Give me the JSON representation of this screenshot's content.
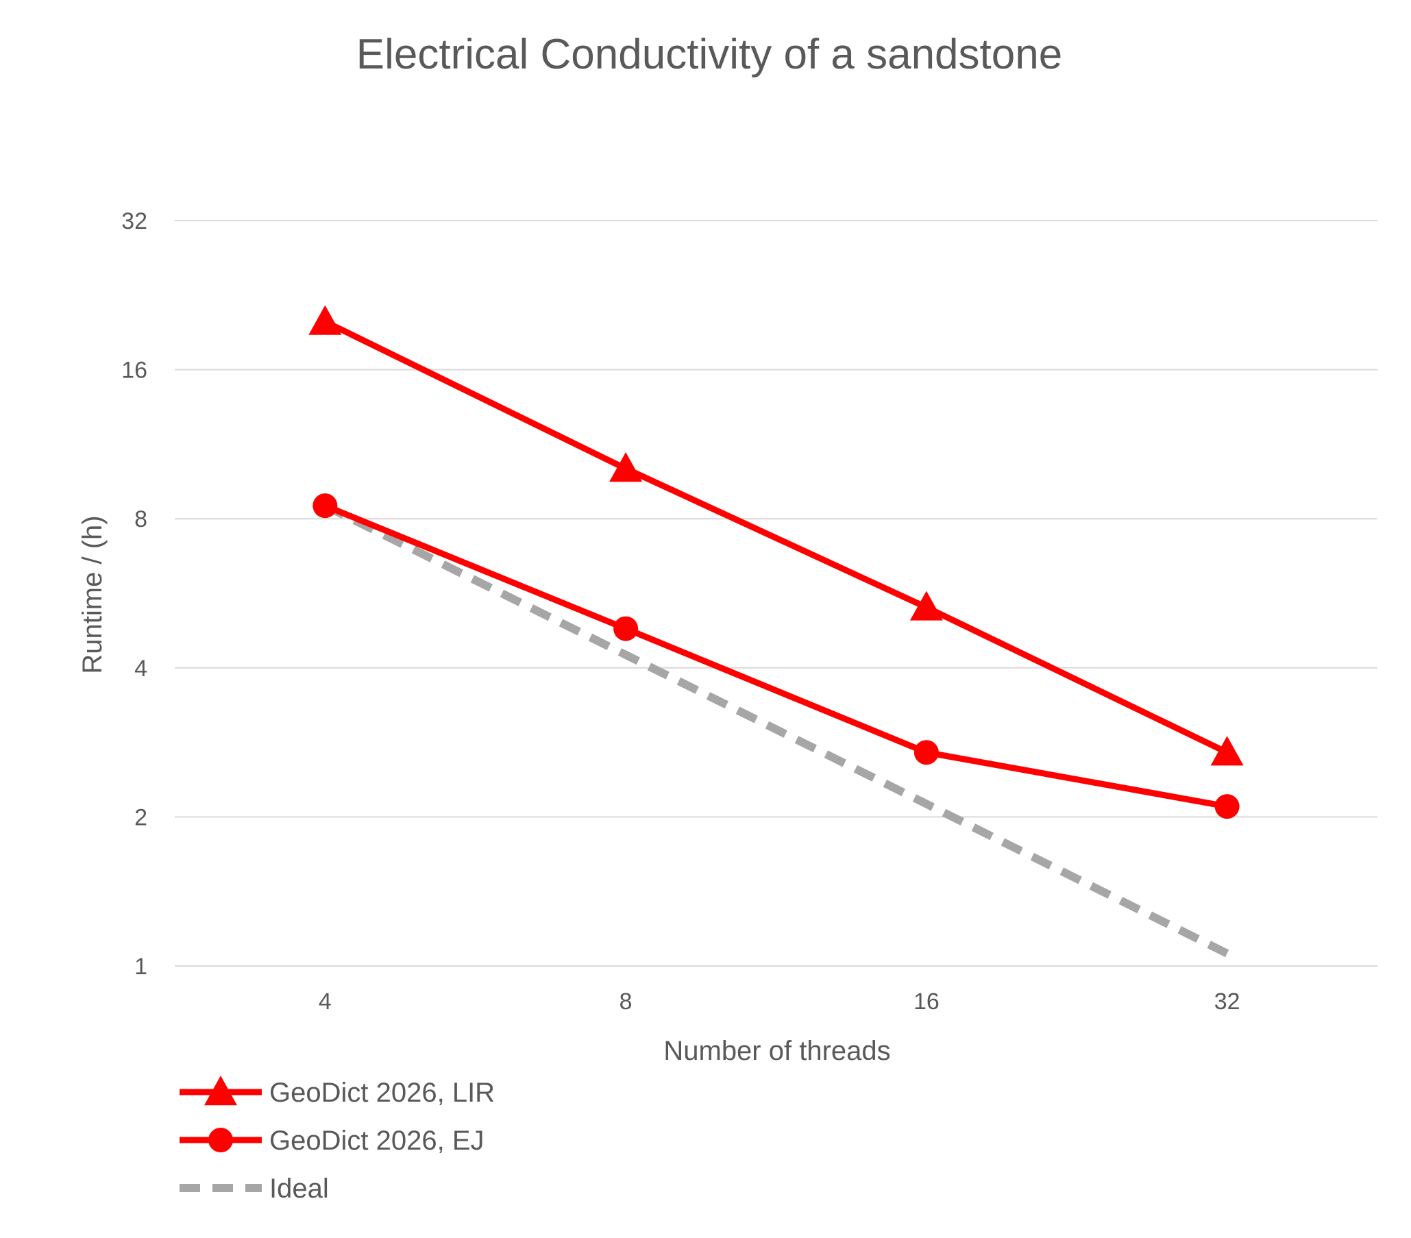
{
  "chart_data": {
    "type": "line",
    "title": "Electrical Conductivity of a sandstone",
    "xlabel": "Number of threads",
    "ylabel": "Runtime / (h)",
    "x_scale": "log2",
    "y_scale": "log2",
    "x": [
      4,
      8,
      16,
      32
    ],
    "x_ticks": [
      "4",
      "8",
      "16",
      "32"
    ],
    "y_ticks": [
      "1",
      "2",
      "4",
      "8",
      "16",
      "32"
    ],
    "ylim": [
      1,
      32
    ],
    "grid": true,
    "legend_position": "bottom-left",
    "series": [
      {
        "name": "GeoDict 2026, LIR",
        "values": [
          20.0,
          10.1,
          5.3,
          2.7
        ],
        "color": "#ff0000",
        "marker": "triangle",
        "dash": "solid"
      },
      {
        "name": "GeoDict 2026, EJ",
        "values": [
          8.5,
          4.8,
          2.7,
          2.1
        ],
        "color": "#ff0000",
        "marker": "circle",
        "dash": "solid"
      },
      {
        "name": "Ideal",
        "values": [
          8.5,
          4.25,
          2.125,
          1.06
        ],
        "color": "#a6a6a6",
        "marker": "none",
        "dash": "dashed"
      }
    ]
  }
}
